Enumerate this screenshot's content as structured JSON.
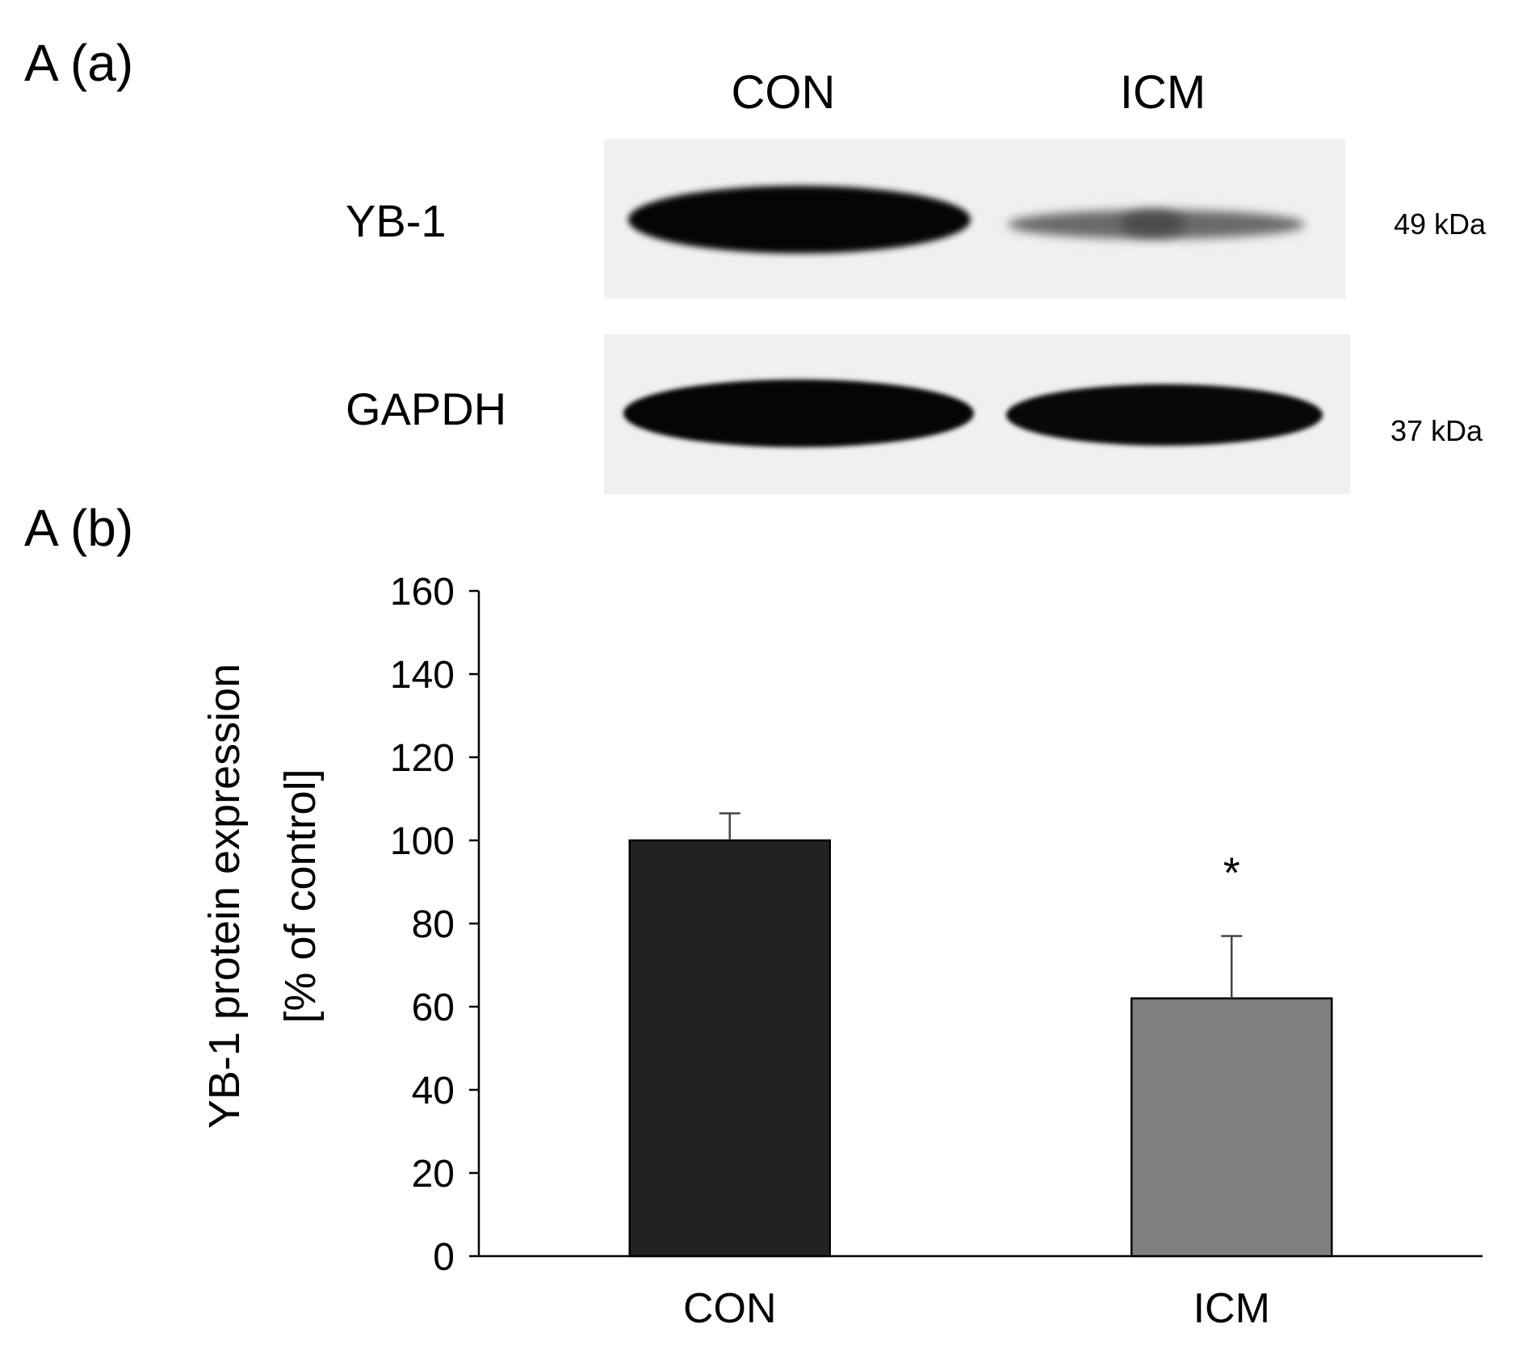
{
  "panel_a": {
    "label": "A (a)",
    "lanes": [
      "CON",
      "ICM"
    ],
    "rows": [
      {
        "name": "YB-1",
        "kda": "49 kDa"
      },
      {
        "name": "GAPDH",
        "kda": "37 kDa"
      }
    ]
  },
  "panel_b": {
    "label": "A (b)"
  },
  "colors": {
    "con_bar": "#222222",
    "icm_bar": "#7f7f7f",
    "axis": "#000000",
    "error_bar": "#444444"
  },
  "chart_data": {
    "type": "bar",
    "categories": [
      "CON",
      "ICM"
    ],
    "values": [
      100,
      62
    ],
    "errors": [
      6.5,
      15
    ],
    "ylabel": "YB-1 protein expression [% of control]",
    "ylabel_lines": [
      "YB-1 protein expression",
      "[% of control]"
    ],
    "ylim": [
      0,
      160
    ],
    "yticks": [
      0,
      20,
      40,
      60,
      80,
      100,
      120,
      140,
      160
    ],
    "annotations": [
      {
        "category": "ICM",
        "text": "*"
      }
    ],
    "grid": false,
    "legend": "none"
  }
}
